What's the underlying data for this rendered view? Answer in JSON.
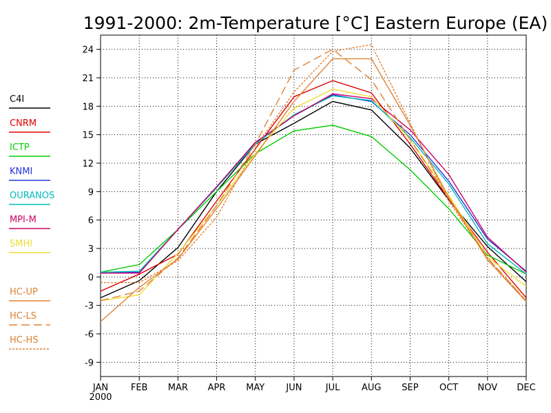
{
  "chart_data": {
    "type": "line",
    "title": "1991-2000: 2m-Temperature [°C] Eastern Europe (EA)",
    "xlabel": "",
    "ylabel": "",
    "categories": [
      "JAN",
      "FEB",
      "MAR",
      "APR",
      "MAY",
      "JUN",
      "JUL",
      "AUG",
      "SEP",
      "OCT",
      "NOV",
      "DEC"
    ],
    "year_label": "2000",
    "ylim": [
      -10.5,
      25.5
    ],
    "yticks": [
      24,
      21,
      18,
      15,
      12,
      9,
      6,
      3,
      0,
      -3,
      -6,
      -9
    ],
    "ytick_labels": [
      "24",
      "21",
      "18",
      "15",
      "12",
      "9",
      "6",
      "3",
      "0",
      "-3",
      "-6",
      "-9"
    ],
    "grid": true,
    "legend_position": "left",
    "series": [
      {
        "name": "C4I",
        "color": "#000000",
        "dash": "solid",
        "values": [
          -2.2,
          -0.4,
          3.1,
          9.0,
          14.0,
          16.2,
          18.5,
          17.6,
          13.6,
          8.1,
          3.2,
          -0.5
        ]
      },
      {
        "name": "CNRM",
        "color": "#dd0000",
        "dash": "solid",
        "values": [
          -1.5,
          0.3,
          2.4,
          8.0,
          13.5,
          19.0,
          20.7,
          19.4,
          14.0,
          8.2,
          2.6,
          -2.2
        ]
      },
      {
        "name": "ICTP",
        "color": "#00cc00",
        "dash": "solid",
        "values": [
          0.5,
          1.3,
          5.0,
          9.0,
          13.0,
          15.4,
          16.0,
          14.8,
          11.3,
          7.2,
          2.3,
          0.3
        ]
      },
      {
        "name": "KNMI",
        "color": "#2233dd",
        "dash": "solid",
        "values": [
          0.4,
          0.5,
          5.0,
          9.5,
          14.1,
          17.0,
          19.2,
          18.5,
          15.0,
          10.1,
          4.0,
          0.6
        ]
      },
      {
        "name": "OURANOS",
        "color": "#00bbbb",
        "dash": "solid",
        "values": [
          0.5,
          0.6,
          5.0,
          9.4,
          14.0,
          17.1,
          19.1,
          18.6,
          14.7,
          9.8,
          3.5,
          0.3
        ]
      },
      {
        "name": "MPI-M",
        "color": "#cc0066",
        "dash": "solid",
        "values": [
          0.4,
          0.4,
          5.0,
          9.5,
          14.2,
          17.0,
          19.3,
          18.8,
          15.5,
          10.8,
          4.2,
          0.5
        ]
      },
      {
        "name": "SMHI",
        "color": "#eedd33",
        "dash": "solid",
        "values": [
          -2.5,
          -1.9,
          2.5,
          7.5,
          13.0,
          17.8,
          19.8,
          19.0,
          14.5,
          8.6,
          2.1,
          -1.0
        ]
      },
      {
        "name": "HC-UP",
        "color": "#e08030",
        "dash": "solid",
        "values": [
          -4.7,
          -1.1,
          1.9,
          7.2,
          12.8,
          18.5,
          23.0,
          23.0,
          16.0,
          8.4,
          1.8,
          -2.6
        ]
      },
      {
        "name": "HC-LS",
        "color": "#e08030",
        "dash": "long",
        "values": [
          -2.5,
          -1.5,
          2.0,
          7.5,
          14.0,
          21.8,
          24.0,
          20.8,
          14.5,
          8.3,
          2.0,
          -2.5
        ]
      },
      {
        "name": "HC-HS",
        "color": "#e08030",
        "dash": "short",
        "values": [
          -0.6,
          -0.6,
          1.7,
          6.3,
          13.6,
          19.5,
          23.8,
          24.5,
          16.2,
          8.0,
          2.0,
          -2.5
        ]
      }
    ]
  }
}
